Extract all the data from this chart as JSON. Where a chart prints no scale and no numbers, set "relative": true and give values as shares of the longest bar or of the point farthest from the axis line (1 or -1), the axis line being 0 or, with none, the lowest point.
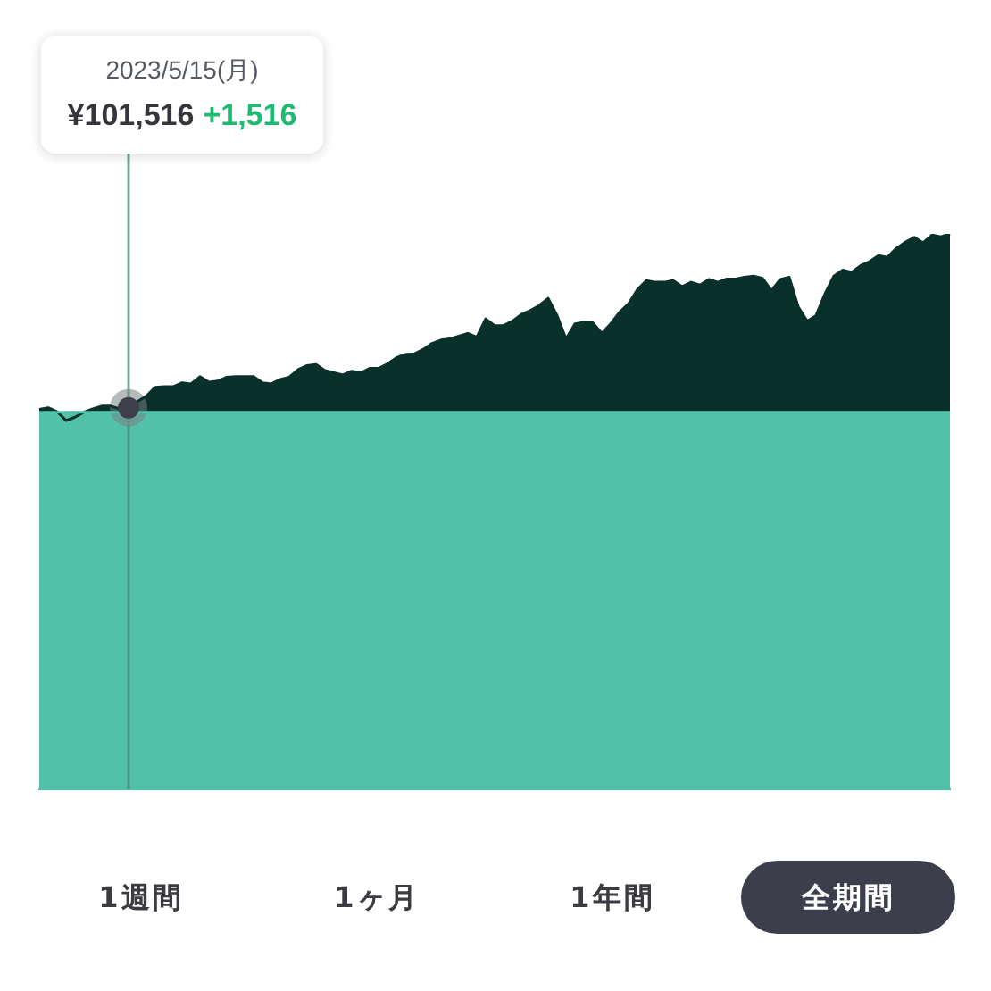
{
  "chart_data": {
    "type": "area",
    "relative": true,
    "tick_labels": false,
    "categories": [
      null,
      null,
      null,
      null,
      null,
      null,
      null,
      null,
      null,
      null,
      null,
      null,
      null,
      null,
      null,
      null,
      null,
      null,
      null,
      null,
      null,
      null,
      null,
      null,
      null,
      null,
      null,
      null,
      null,
      null,
      null,
      null,
      null,
      null,
      null,
      null,
      null,
      null,
      null,
      null,
      null,
      null,
      null,
      null,
      null,
      null,
      null,
      null,
      null,
      null,
      null,
      null,
      null,
      null,
      null,
      null,
      null,
      null,
      null,
      null,
      null,
      null,
      null,
      null,
      null,
      null,
      null,
      null,
      null,
      null,
      null,
      null,
      null,
      null,
      null,
      null,
      null,
      null,
      null,
      null,
      null,
      null,
      null,
      null,
      null,
      null,
      null,
      null,
      null,
      null,
      null,
      null,
      null,
      null,
      null,
      null,
      null,
      null,
      null,
      null,
      null,
      null,
      null
    ],
    "series": [
      {
        "color": "#0a302a",
        "values": [
          0.684,
          0.687,
          0.68,
          0.664,
          0.67,
          0.679,
          0.685,
          0.69,
          0.69,
          0.685,
          0.687,
          0.698,
          0.708,
          0.724,
          0.725,
          0.725,
          0.732,
          0.73,
          0.743,
          0.733,
          0.735,
          0.742,
          0.743,
          0.743,
          0.743,
          0.732,
          0.73,
          0.738,
          0.742,
          0.756,
          0.763,
          0.765,
          0.754,
          0.75,
          0.746,
          0.753,
          0.75,
          0.758,
          0.758,
          0.766,
          0.777,
          0.783,
          0.784,
          0.792,
          0.803,
          0.809,
          0.811,
          0.816,
          0.821,
          0.814,
          0.847,
          0.835,
          0.835,
          0.843,
          0.855,
          0.862,
          0.871,
          0.884,
          0.853,
          0.811,
          0.838,
          0.841,
          0.84,
          0.821,
          0.838,
          0.859,
          0.874,
          0.9,
          0.916,
          0.913,
          0.913,
          0.916,
          0.905,
          0.913,
          0.908,
          0.918,
          0.913,
          0.919,
          0.919,
          0.922,
          0.924,
          0.92,
          0.898,
          0.918,
          0.922,
          0.869,
          0.843,
          0.853,
          0.892,
          0.924,
          0.935,
          0.931,
          0.943,
          0.95,
          0.961,
          0.958,
          0.974,
          0.985,
          0.994,
          0.984,
          0.998,
          0.995,
          1
        ]
      },
      {
        "color": "#52c1a9",
        "values": [
          0.679,
          0.679,
          0.679,
          0.679,
          0.679,
          0.679,
          0.679,
          0.679,
          0.679,
          0.679,
          0.679,
          0.679,
          0.679,
          0.679,
          0.679,
          0.679,
          0.679,
          0.679,
          0.679,
          0.679,
          0.679,
          0.679,
          0.679,
          0.679,
          0.679,
          0.679,
          0.679,
          0.679,
          0.679,
          0.679,
          0.679,
          0.679,
          0.679,
          0.679,
          0.679,
          0.679,
          0.679,
          0.679,
          0.679,
          0.679,
          0.679,
          0.679,
          0.679,
          0.679,
          0.679,
          0.679,
          0.679,
          0.679,
          0.679,
          0.679,
          0.679,
          0.679,
          0.679,
          0.679,
          0.679,
          0.679,
          0.679,
          0.679,
          0.679,
          0.679,
          0.679,
          0.679,
          0.679,
          0.679,
          0.679,
          0.679,
          0.679,
          0.679,
          0.679,
          0.679,
          0.679,
          0.679,
          0.679,
          0.679,
          0.679,
          0.679,
          0.679,
          0.679,
          0.679,
          0.679,
          0.679,
          0.679,
          0.679,
          0.679,
          0.679,
          0.679,
          0.679,
          0.679,
          0.679,
          0.679,
          0.679,
          0.679,
          0.679,
          0.679,
          0.679,
          0.679,
          0.679,
          0.679,
          0.679,
          0.679,
          0.679,
          0.679,
          0.679
        ]
      },
      {
        "type": "line",
        "color": "#3d3f4b",
        "marker": "circle",
        "values": [
          null,
          null,
          null,
          null,
          null,
          null,
          null,
          null,
          null,
          null,
          0.687,
          null,
          null,
          null,
          null,
          null,
          null,
          null,
          null,
          null,
          null,
          null,
          null,
          null,
          null,
          null,
          null,
          null,
          null,
          null,
          null,
          null,
          null,
          null,
          null,
          null,
          null,
          null,
          null,
          null,
          null,
          null,
          null,
          null,
          null,
          null,
          null,
          null,
          null,
          null,
          null,
          null,
          null,
          null,
          null,
          null,
          null,
          null,
          null,
          null,
          null,
          null,
          null,
          null,
          null,
          null,
          null,
          null,
          null,
          null,
          null,
          null,
          null,
          null,
          null,
          null,
          null,
          null,
          null,
          null,
          null,
          null,
          null,
          null,
          null,
          null,
          null,
          null,
          null,
          null,
          null,
          null,
          null,
          null,
          null,
          null,
          null,
          null,
          null,
          null,
          null,
          null,
          null
        ]
      }
    ],
    "annotations": [
      "2023/5/15(月)",
      "¥101,516",
      "+1,516",
      "1週間",
      "1ヶ月",
      "1年間",
      "全期間"
    ]
  }
}
